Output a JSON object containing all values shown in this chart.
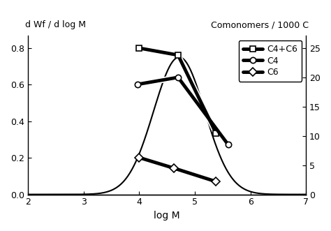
{
  "title_left": "d Wf / d log M",
  "title_right": "Comonomers / 1000 C",
  "xlabel": "log M",
  "xlim": [
    2,
    7
  ],
  "ylim_left": [
    0,
    0.866
  ],
  "ylim_right": [
    0,
    27.08
  ],
  "yticks_left": [
    0.0,
    0.2,
    0.4,
    0.6,
    0.8
  ],
  "yticks_right": [
    0,
    5,
    10,
    15,
    20,
    25
  ],
  "xticks": [
    2,
    3,
    4,
    5,
    6,
    7
  ],
  "curve_color": "#000000",
  "curve_lw": 1.5,
  "curve_mu": 4.72,
  "curve_sigma": 0.46,
  "curve_peak": 0.75,
  "series": [
    {
      "label": "C4+C6",
      "x": [
        4.0,
        4.7,
        5.38
      ],
      "y": [
        25.0,
        23.8,
        10.5
      ],
      "marker": "s",
      "markersize": 6,
      "lw": 3.5,
      "color": "#000000"
    },
    {
      "label": "C4",
      "x": [
        3.97,
        4.7,
        5.6
      ],
      "y": [
        18.8,
        20.0,
        8.5
      ],
      "marker": "o",
      "markersize": 6,
      "lw": 3.5,
      "color": "#000000"
    },
    {
      "label": "C6",
      "x": [
        4.0,
        4.62,
        5.38
      ],
      "y": [
        6.3,
        4.5,
        2.2
      ],
      "marker": "D",
      "markersize": 6,
      "lw": 3.5,
      "color": "#000000"
    }
  ],
  "background_color": "#ffffff"
}
